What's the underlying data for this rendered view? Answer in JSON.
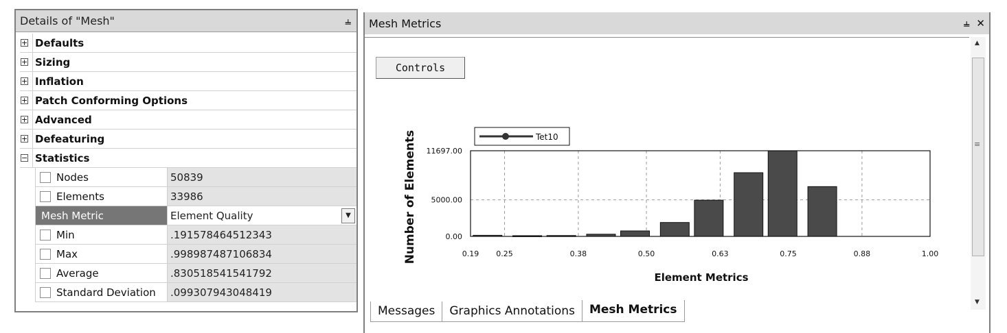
{
  "details": {
    "title": "Details of \"Mesh\"",
    "pin_icon": "pin-icon",
    "groups": [
      {
        "label": "Defaults",
        "toggle": "+"
      },
      {
        "label": "Sizing",
        "toggle": "+"
      },
      {
        "label": "Inflation",
        "toggle": "+"
      },
      {
        "label": "Patch Conforming Options",
        "toggle": "+"
      },
      {
        "label": "Advanced",
        "toggle": "+"
      },
      {
        "label": "Defeaturing",
        "toggle": "+"
      },
      {
        "label": "Statistics",
        "toggle": "−"
      }
    ],
    "statistics": {
      "nodes": {
        "label": "Nodes",
        "value": "50839"
      },
      "elements": {
        "label": "Elements",
        "value": "33986"
      },
      "mesh_metric": {
        "label": "Mesh Metric",
        "value": "Element Quality"
      },
      "min": {
        "label": "Min",
        "value": ".191578464512343"
      },
      "max": {
        "label": "Max",
        "value": ".998987487106834"
      },
      "average": {
        "label": "Average",
        "value": ".830518541541792"
      },
      "std_dev": {
        "label": "Standard Deviation",
        "value": ".099307943048419"
      }
    }
  },
  "metrics_panel": {
    "title": "Mesh Metrics",
    "pin_icon": "pin-icon",
    "close_icon": "close-icon",
    "controls_label": "Controls",
    "tabs": [
      "Messages",
      "Graphics Annotations",
      "Mesh Metrics"
    ],
    "active_tab": "Mesh Metrics"
  },
  "chart_data": {
    "type": "bar",
    "legend": [
      "Tet10"
    ],
    "legend_placement": "top-left",
    "xlabel": "Element Metrics",
    "ylabel": "Number of Elements",
    "x_ticks": [
      "0.19",
      "0.25",
      "0.38",
      "0.50",
      "0.63",
      "0.75",
      "0.88",
      "1.00"
    ],
    "x_tick_values": [
      0.19,
      0.25,
      0.38,
      0.5,
      0.63,
      0.75,
      0.88,
      1.0
    ],
    "y_ticks": [
      "0.00",
      "5000.00",
      "11697.00"
    ],
    "y_tick_values": [
      0,
      5000,
      11697
    ],
    "xlim": [
      0.19,
      1.0
    ],
    "ylim": [
      0,
      11697
    ],
    "grid": true,
    "bars": [
      {
        "x": 0.22,
        "value": 150
      },
      {
        "x": 0.29,
        "value": 100
      },
      {
        "x": 0.35,
        "value": 120
      },
      {
        "x": 0.42,
        "value": 300
      },
      {
        "x": 0.48,
        "value": 750
      },
      {
        "x": 0.55,
        "value": 1900
      },
      {
        "x": 0.61,
        "value": 4950
      },
      {
        "x": 0.68,
        "value": 8700
      },
      {
        "x": 0.74,
        "value": 11697
      },
      {
        "x": 0.81,
        "value": 6800
      }
    ]
  }
}
